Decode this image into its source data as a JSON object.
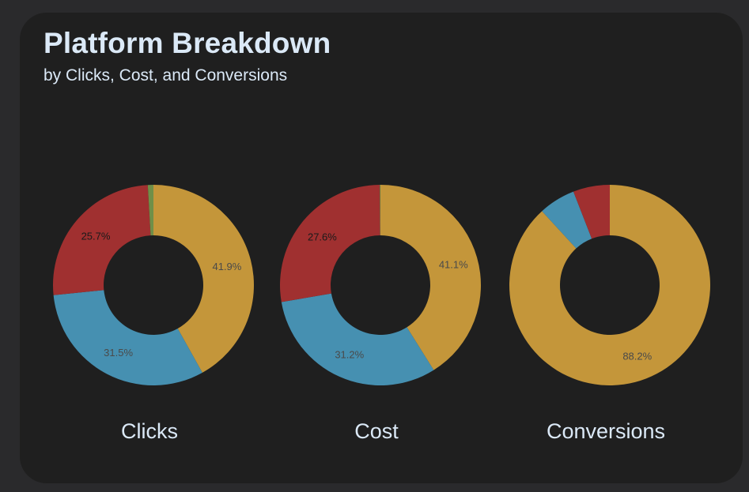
{
  "header": {
    "title": "Platform Breakdown",
    "subtitle": "by Clicks, Cost, and Conversions"
  },
  "colors": {
    "background": "#2a2a2c",
    "card": "#1f1f1f",
    "text": "#dbe9f7",
    "label_dark": "#1a1a1a",
    "label_muted": "#4a4a4a"
  },
  "chart_data": [
    {
      "type": "pie",
      "title": "Clicks",
      "donut": true,
      "slices": [
        {
          "value": 41.9,
          "label": "41.9%",
          "color": "#c4963a"
        },
        {
          "value": 31.5,
          "label": "31.5%",
          "color": "#4690b1"
        },
        {
          "value": 25.7,
          "label": "25.7%",
          "color": "#a03030"
        },
        {
          "value": 0.9,
          "label": "",
          "color": "#6f8f48"
        }
      ]
    },
    {
      "type": "pie",
      "title": "Cost",
      "donut": true,
      "slices": [
        {
          "value": 41.1,
          "label": "41.1%",
          "color": "#c4963a"
        },
        {
          "value": 31.2,
          "label": "31.2%",
          "color": "#4690b1"
        },
        {
          "value": 27.6,
          "label": "27.6%",
          "color": "#a03030"
        },
        {
          "value": 0.1,
          "label": "",
          "color": "#6f8f48"
        }
      ]
    },
    {
      "type": "pie",
      "title": "Conversions",
      "donut": true,
      "slices": [
        {
          "value": 88.2,
          "label": "88.2%",
          "color": "#c4963a"
        },
        {
          "value": 5.9,
          "label": "",
          "color": "#4690b1"
        },
        {
          "value": 5.9,
          "label": "",
          "color": "#a03030"
        }
      ]
    }
  ]
}
